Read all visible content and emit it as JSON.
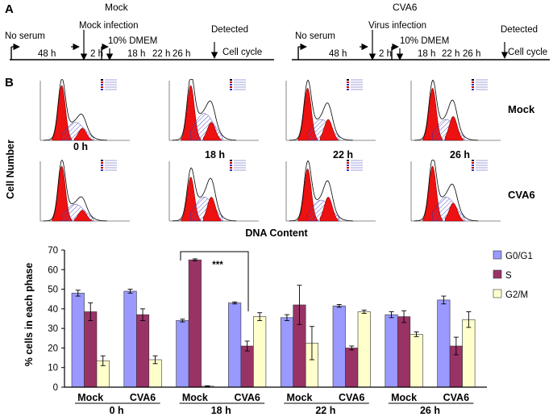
{
  "panel_a": {
    "label": "A",
    "mock": {
      "title": "Mock",
      "start": "No serum",
      "infection": "Mock infection",
      "medium": "10% DMEM",
      "detected": "Detected",
      "cell_cycle": "Cell cycle",
      "times": [
        "48 h",
        "2 h",
        "18 h",
        "22 h",
        "26 h"
      ]
    },
    "cva6": {
      "title": "CVA6",
      "start": "No serum",
      "infection": "Virus infection",
      "medium": "10% DMEM",
      "detected": "Detected",
      "cell_cycle": "Cell cycle",
      "times": [
        "48 h",
        "2 h",
        "18 h",
        "22 h",
        "26 h"
      ]
    }
  },
  "panel_b": {
    "label": "B",
    "y_axis": "Cell Number",
    "x_axis": "DNA Content",
    "row_labels": [
      "Mock",
      "CVA6"
    ],
    "time_labels": [
      "0 h",
      "18 h",
      "22 h",
      "26 h"
    ]
  },
  "chart_data": {
    "type": "bar",
    "ylabel": "% cells in each phase",
    "ylim": [
      0,
      70
    ],
    "yticks": [
      "0",
      "10",
      "20",
      "30",
      "40",
      "50",
      "60",
      "70"
    ],
    "groups": [
      "Mock",
      "CVA6",
      "Mock",
      "CVA6",
      "Mock",
      "CVA6",
      "Mock",
      "CVA6"
    ],
    "hours": [
      "0 h",
      "18 h",
      "22 h",
      "26 h"
    ],
    "series": [
      {
        "name": "G0/G1",
        "color": "#9999ff",
        "values": [
          48,
          49,
          34,
          43,
          35.5,
          41.5,
          37,
          44.5
        ],
        "errors": [
          1.5,
          1,
          0.7,
          0.5,
          1.5,
          0.7,
          1.5,
          2
        ]
      },
      {
        "name": "S",
        "color": "#993366",
        "values": [
          38.5,
          37,
          65,
          21,
          42,
          20,
          36,
          21
        ],
        "errors": [
          4.5,
          3,
          0.5,
          2.5,
          10,
          1,
          3,
          4.5
        ]
      },
      {
        "name": "G2/M",
        "color": "#ffffcc",
        "values": [
          13.5,
          14,
          0.5,
          36,
          22.5,
          38.5,
          27,
          34.5
        ],
        "errors": [
          2.5,
          2,
          0.2,
          2,
          8.5,
          0.8,
          1.2,
          4
        ]
      }
    ],
    "annotation": "***"
  }
}
